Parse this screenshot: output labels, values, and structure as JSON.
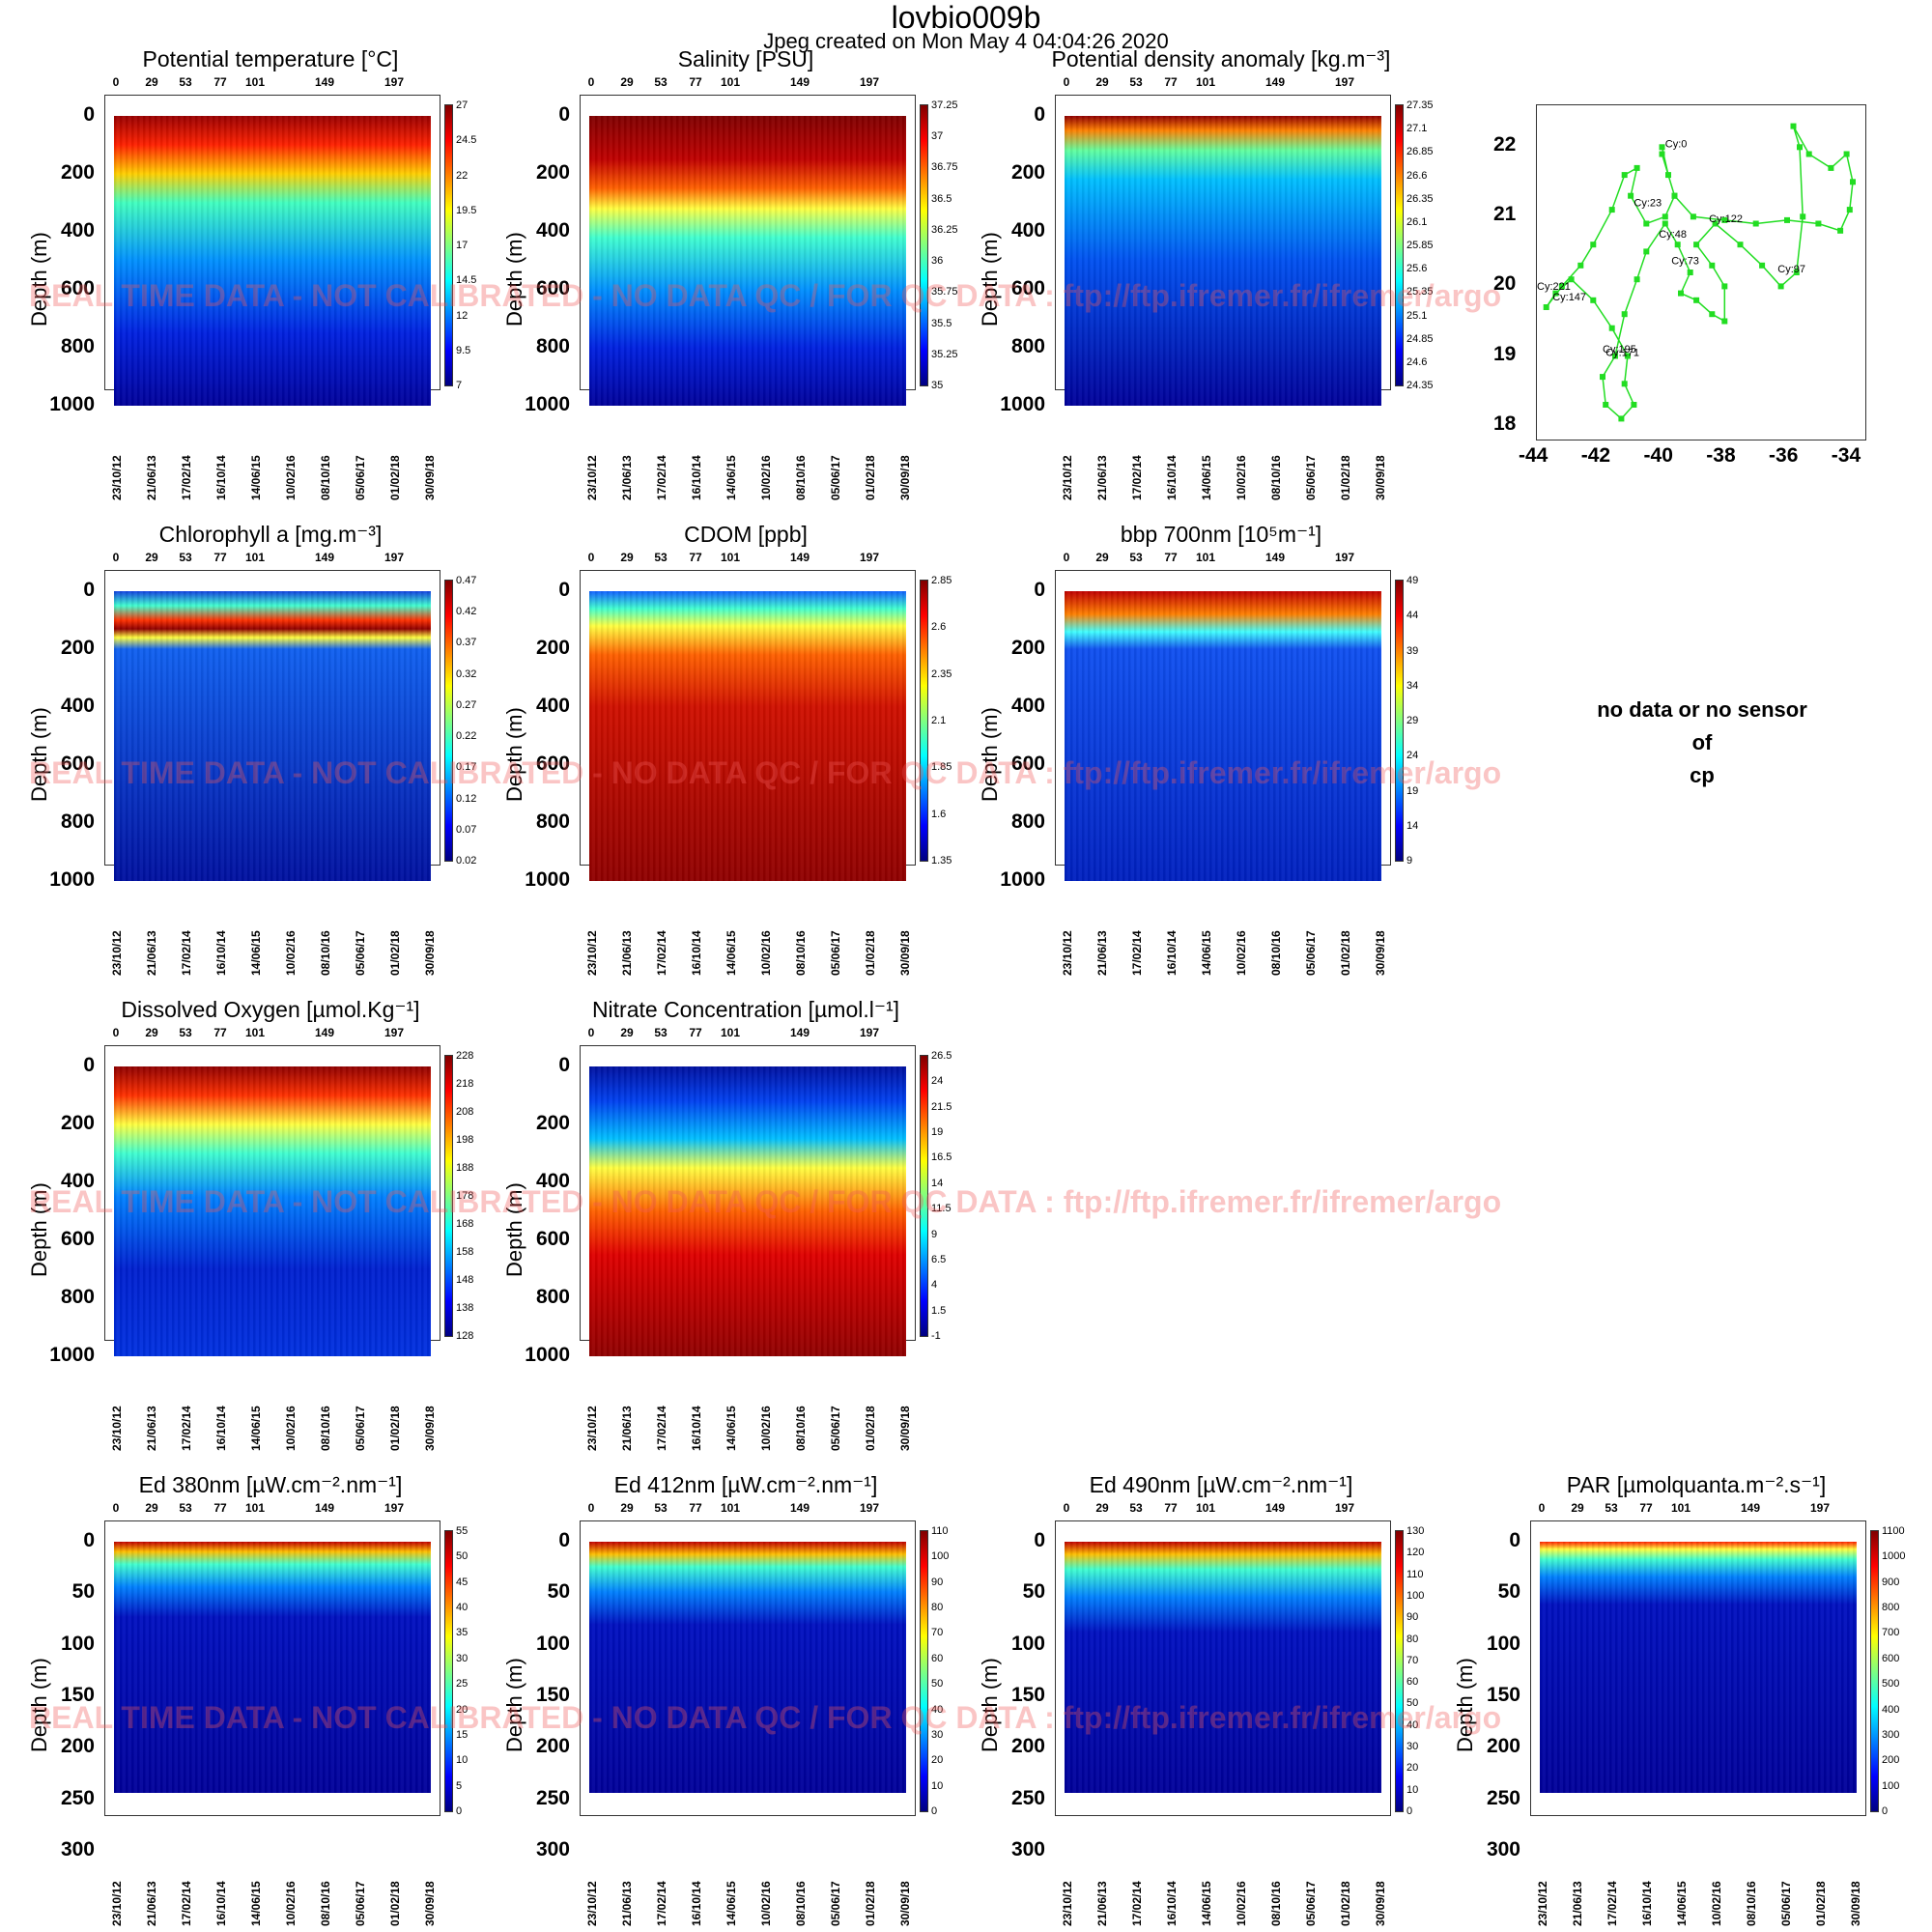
{
  "title": "lovbio009b",
  "subtitle": "Jpeg created on  Mon May  4 04:04:26 2020",
  "watermark": "REAL TIME DATA - NOT CALIBRATED - NO DATA QC  /  FOR QC DATA : ftp://ftp.ifremer.fr/ifremer/argo",
  "no_data": {
    "line1": "no data or no sensor",
    "line2": "of",
    "line3": "cp"
  },
  "chart_data": {
    "type": "heatmap",
    "shared": {
      "cycle_ticks": [
        "0",
        "29",
        "53",
        "77",
        "101",
        "149",
        "197"
      ],
      "date_ticks": [
        "23/10/12",
        "21/06/13",
        "17/02/14",
        "16/10/14",
        "14/06/15",
        "10/02/16",
        "08/10/16",
        "05/06/17",
        "01/02/18",
        "30/09/18"
      ],
      "ylabel": "Depth (m)"
    },
    "panels": [
      {
        "id": "temp",
        "title": "Potential temperature [°C]",
        "ylim": [
          1000,
          0
        ],
        "yticks": [
          "0",
          "200",
          "400",
          "600",
          "800",
          "1000"
        ],
        "colorbar_ticks": [
          "27",
          "24.5",
          "22",
          "19.5",
          "17",
          "14.5",
          "12",
          "9.5",
          "7"
        ],
        "pattern": [
          [
            0,
            "#9a0000"
          ],
          [
            0.1,
            "#ff2000"
          ],
          [
            0.2,
            "#ffd000"
          ],
          [
            0.3,
            "#40ffc0"
          ],
          [
            0.5,
            "#0090ff"
          ],
          [
            0.75,
            "#0020e0"
          ],
          [
            1,
            "#00009a"
          ]
        ]
      },
      {
        "id": "sal",
        "title": "Salinity [PSU]",
        "ylim": [
          1000,
          0
        ],
        "yticks": [
          "0",
          "200",
          "400",
          "600",
          "800",
          "1000"
        ],
        "colorbar_ticks": [
          "37.25",
          "37",
          "36.75",
          "36.5",
          "36.25",
          "36",
          "35.75",
          "35.5",
          "35.25",
          "35"
        ],
        "pattern": [
          [
            0,
            "#800000"
          ],
          [
            0.15,
            "#c00000"
          ],
          [
            0.25,
            "#ff6000"
          ],
          [
            0.32,
            "#ffff40"
          ],
          [
            0.42,
            "#40ffd0"
          ],
          [
            0.6,
            "#0090ff"
          ],
          [
            0.8,
            "#0020e0"
          ],
          [
            1,
            "#00009a"
          ]
        ]
      },
      {
        "id": "dens",
        "title": "Potential density anomaly [kg.m⁻³]",
        "ylim": [
          1000,
          0
        ],
        "yticks": [
          "0",
          "200",
          "400",
          "600",
          "800",
          "1000"
        ],
        "colorbar_ticks": [
          "27.35",
          "27.1",
          "26.85",
          "26.6",
          "26.35",
          "26.1",
          "25.85",
          "25.6",
          "25.35",
          "25.1",
          "24.85",
          "24.6",
          "24.35"
        ],
        "pattern": [
          [
            0,
            "#900000"
          ],
          [
            0.05,
            "#ff8000"
          ],
          [
            0.12,
            "#60ffa0"
          ],
          [
            0.22,
            "#00c0ff"
          ],
          [
            0.5,
            "#0050f0"
          ],
          [
            1,
            "#00009a"
          ]
        ]
      },
      {
        "id": "chla",
        "title": "Chlorophyll a [mg.m⁻³]",
        "ylim": [
          1000,
          0
        ],
        "yticks": [
          "0",
          "200",
          "400",
          "600",
          "800",
          "1000"
        ],
        "colorbar_ticks": [
          "0.47",
          "0.42",
          "0.37",
          "0.32",
          "0.27",
          "0.22",
          "0.17",
          "0.12",
          "0.07",
          "0.02"
        ],
        "pattern": [
          [
            0,
            "#1040e0"
          ],
          [
            0.05,
            "#40ffd0"
          ],
          [
            0.1,
            "#ff3000"
          ],
          [
            0.13,
            "#900000"
          ],
          [
            0.16,
            "#ffff40"
          ],
          [
            0.2,
            "#1060f0"
          ],
          [
            1,
            "#0010a0"
          ]
        ]
      },
      {
        "id": "cdom",
        "title": "CDOM  [ppb]",
        "ylim": [
          1000,
          0
        ],
        "yticks": [
          "0",
          "200",
          "400",
          "600",
          "800",
          "1000"
        ],
        "colorbar_ticks": [
          "2.85",
          "2.6",
          "2.35",
          "2.1",
          "1.85",
          "1.6",
          "1.35"
        ],
        "pattern": [
          [
            0,
            "#1060ff"
          ],
          [
            0.06,
            "#40ffd0"
          ],
          [
            0.12,
            "#ffff40"
          ],
          [
            0.22,
            "#ff6000"
          ],
          [
            0.4,
            "#d01000"
          ],
          [
            1,
            "#900000"
          ]
        ]
      },
      {
        "id": "bbp",
        "title": "bbp 700nm [10⁵m⁻¹]",
        "ylim": [
          1000,
          0
        ],
        "yticks": [
          "0",
          "200",
          "400",
          "600",
          "800",
          "1000"
        ],
        "colorbar_ticks": [
          "49",
          "44",
          "39",
          "34",
          "29",
          "24",
          "19",
          "14",
          "9"
        ],
        "pattern": [
          [
            0,
            "#c00000"
          ],
          [
            0.08,
            "#ff8000"
          ],
          [
            0.14,
            "#40ffff"
          ],
          [
            0.2,
            "#1050f0"
          ],
          [
            1,
            "#0020c0"
          ]
        ]
      },
      {
        "id": "doxy",
        "title": "Dissolved Oxygen [µmol.Kg⁻¹]",
        "ylim": [
          1000,
          0
        ],
        "yticks": [
          "0",
          "200",
          "400",
          "600",
          "800",
          "1000"
        ],
        "colorbar_ticks": [
          "228",
          "218",
          "208",
          "198",
          "188",
          "178",
          "168",
          "158",
          "148",
          "138",
          "128"
        ],
        "pattern": [
          [
            0,
            "#900000"
          ],
          [
            0.1,
            "#ff3000"
          ],
          [
            0.2,
            "#ffff40"
          ],
          [
            0.3,
            "#40ffd0"
          ],
          [
            0.45,
            "#0080ff"
          ],
          [
            0.7,
            "#0020d0"
          ],
          [
            1,
            "#0030e0"
          ]
        ]
      },
      {
        "id": "nitrate",
        "title": "Nitrate Concentration [µmol.l⁻¹]",
        "ylim": [
          1000,
          0
        ],
        "yticks": [
          "0",
          "200",
          "400",
          "600",
          "800",
          "1000"
        ],
        "colorbar_ticks": [
          "26.5",
          "24",
          "21.5",
          "19",
          "16.5",
          "14",
          "11.5",
          "9",
          "6.5",
          "4",
          "1.5",
          "-1"
        ],
        "pattern": [
          [
            0,
            "#0010a0"
          ],
          [
            0.12,
            "#0040f0"
          ],
          [
            0.25,
            "#00c0ff"
          ],
          [
            0.35,
            "#ffff40"
          ],
          [
            0.5,
            "#ff6000"
          ],
          [
            0.65,
            "#e00000"
          ],
          [
            1,
            "#900000"
          ]
        ]
      },
      {
        "id": "ed380",
        "title": "Ed 380nm [µW.cm⁻².nm⁻¹]",
        "ylim": [
          300,
          0
        ],
        "yticks": [
          "0",
          "50",
          "100",
          "150",
          "200",
          "250",
          "300"
        ],
        "colorbar_ticks": [
          "55",
          "50",
          "45",
          "40",
          "35",
          "30",
          "25",
          "20",
          "15",
          "10",
          "5",
          "0"
        ],
        "pattern": [
          [
            0,
            "#c00000"
          ],
          [
            0.04,
            "#ffc000"
          ],
          [
            0.09,
            "#40ffd0"
          ],
          [
            0.18,
            "#0080ff"
          ],
          [
            0.3,
            "#0010c0"
          ],
          [
            1,
            "#00009a"
          ]
        ]
      },
      {
        "id": "ed412",
        "title": "Ed 412nm [µW.cm⁻².nm⁻¹]",
        "ylim": [
          300,
          0
        ],
        "yticks": [
          "0",
          "50",
          "100",
          "150",
          "200",
          "250",
          "300"
        ],
        "colorbar_ticks": [
          "110",
          "100",
          "90",
          "80",
          "70",
          "60",
          "50",
          "40",
          "30",
          "20",
          "10",
          "0"
        ],
        "pattern": [
          [
            0,
            "#c00000"
          ],
          [
            0.05,
            "#ffc000"
          ],
          [
            0.1,
            "#40ffd0"
          ],
          [
            0.2,
            "#0080ff"
          ],
          [
            0.33,
            "#0010c0"
          ],
          [
            1,
            "#00009a"
          ]
        ]
      },
      {
        "id": "ed490",
        "title": "Ed 490nm [µW.cm⁻².nm⁻¹]",
        "ylim": [
          300,
          0
        ],
        "yticks": [
          "0",
          "50",
          "100",
          "150",
          "200",
          "250",
          "300"
        ],
        "colorbar_ticks": [
          "130",
          "120",
          "110",
          "100",
          "90",
          "80",
          "70",
          "60",
          "50",
          "40",
          "30",
          "20",
          "10",
          "0"
        ],
        "pattern": [
          [
            0,
            "#c00000"
          ],
          [
            0.05,
            "#ffc000"
          ],
          [
            0.11,
            "#40ffd0"
          ],
          [
            0.22,
            "#0080ff"
          ],
          [
            0.36,
            "#0010c0"
          ],
          [
            1,
            "#00009a"
          ]
        ]
      },
      {
        "id": "par",
        "title": "PAR [µmolquanta.m⁻².s⁻¹]",
        "ylim": [
          300,
          0
        ],
        "yticks": [
          "0",
          "50",
          "100",
          "150",
          "200",
          "250",
          "300"
        ],
        "colorbar_ticks": [
          "1100",
          "1000",
          "900",
          "800",
          "700",
          "600",
          "500",
          "400",
          "300",
          "200",
          "100",
          "0"
        ],
        "pattern": [
          [
            0,
            "#ff2000"
          ],
          [
            0.03,
            "#ffff40"
          ],
          [
            0.07,
            "#40ffd0"
          ],
          [
            0.14,
            "#0080ff"
          ],
          [
            0.25,
            "#0010c0"
          ],
          [
            1,
            "#00009a"
          ]
        ]
      }
    ],
    "map": {
      "type": "scatter",
      "xticks": [
        "-44",
        "-42",
        "-40",
        "-38",
        "-36",
        "-34"
      ],
      "yticks": [
        "22",
        "21",
        "20",
        "19",
        "18"
      ],
      "xlim": [
        -44,
        -33.5
      ],
      "ylim": [
        17.8,
        22.6
      ],
      "track_color": "#22dd22",
      "track": [
        [
          -40.0,
          22.0
        ],
        [
          -39.8,
          21.6
        ],
        [
          -39.6,
          21.3
        ],
        [
          -39.9,
          21.0
        ],
        [
          -40.5,
          20.9
        ],
        [
          -41.0,
          21.3
        ],
        [
          -40.8,
          21.7
        ],
        [
          -41.2,
          21.6
        ],
        [
          -41.6,
          21.1
        ],
        [
          -42.2,
          20.6
        ],
        [
          -42.6,
          20.3
        ],
        [
          -43.2,
          20.0
        ],
        [
          -43.7,
          19.7
        ],
        [
          -43.4,
          19.9
        ],
        [
          -42.9,
          20.1
        ],
        [
          -42.2,
          19.8
        ],
        [
          -41.6,
          19.4
        ],
        [
          -41.1,
          19.0
        ],
        [
          -41.2,
          18.6
        ],
        [
          -40.9,
          18.3
        ],
        [
          -41.3,
          18.1
        ],
        [
          -41.8,
          18.3
        ],
        [
          -41.9,
          18.7
        ],
        [
          -41.5,
          19.0
        ],
        [
          -41.2,
          19.6
        ],
        [
          -40.8,
          20.1
        ],
        [
          -40.5,
          20.5
        ],
        [
          -39.9,
          20.9
        ],
        [
          -39.5,
          20.6
        ],
        [
          -39.1,
          20.2
        ],
        [
          -39.4,
          19.9
        ],
        [
          -38.9,
          19.8
        ],
        [
          -38.4,
          19.6
        ],
        [
          -38.0,
          19.5
        ],
        [
          -38.0,
          20.0
        ],
        [
          -38.4,
          20.3
        ],
        [
          -38.9,
          20.6
        ],
        [
          -38.3,
          20.9
        ],
        [
          -37.5,
          20.6
        ],
        [
          -36.8,
          20.3
        ],
        [
          -36.2,
          20.0
        ],
        [
          -35.7,
          20.2
        ],
        [
          -35.5,
          21.0
        ],
        [
          -35.6,
          22.0
        ],
        [
          -35.8,
          22.3
        ],
        [
          -35.3,
          21.9
        ],
        [
          -34.6,
          21.7
        ],
        [
          -34.1,
          21.9
        ],
        [
          -33.9,
          21.5
        ],
        [
          -34.0,
          21.1
        ],
        [
          -34.3,
          20.8
        ],
        [
          -35.0,
          20.9
        ],
        [
          -36.0,
          20.95
        ],
        [
          -37.0,
          20.9
        ],
        [
          -38.0,
          20.95
        ],
        [
          -39.0,
          21.0
        ],
        [
          -39.6,
          21.3
        ],
        [
          -40.0,
          21.9
        ]
      ],
      "labels": [
        {
          "text": "Cy:0",
          "x": -39.9,
          "y": 22.0
        },
        {
          "text": "Cy:23",
          "x": -40.9,
          "y": 21.15
        },
        {
          "text": "Cy:48",
          "x": -40.1,
          "y": 20.7
        },
        {
          "text": "Cy:122",
          "x": -38.5,
          "y": 20.92
        },
        {
          "text": "Cy:73",
          "x": -39.7,
          "y": 20.32
        },
        {
          "text": "Cy:97",
          "x": -36.3,
          "y": 20.2
        },
        {
          "text": "Cy:221",
          "x": -44.0,
          "y": 19.95
        },
        {
          "text": "Cy:147",
          "x": -43.5,
          "y": 19.8
        },
        {
          "text": "Cy:195",
          "x": -41.9,
          "y": 19.05
        },
        {
          "text": "Cy:171",
          "x": -41.8,
          "y": 19.0
        }
      ]
    }
  }
}
